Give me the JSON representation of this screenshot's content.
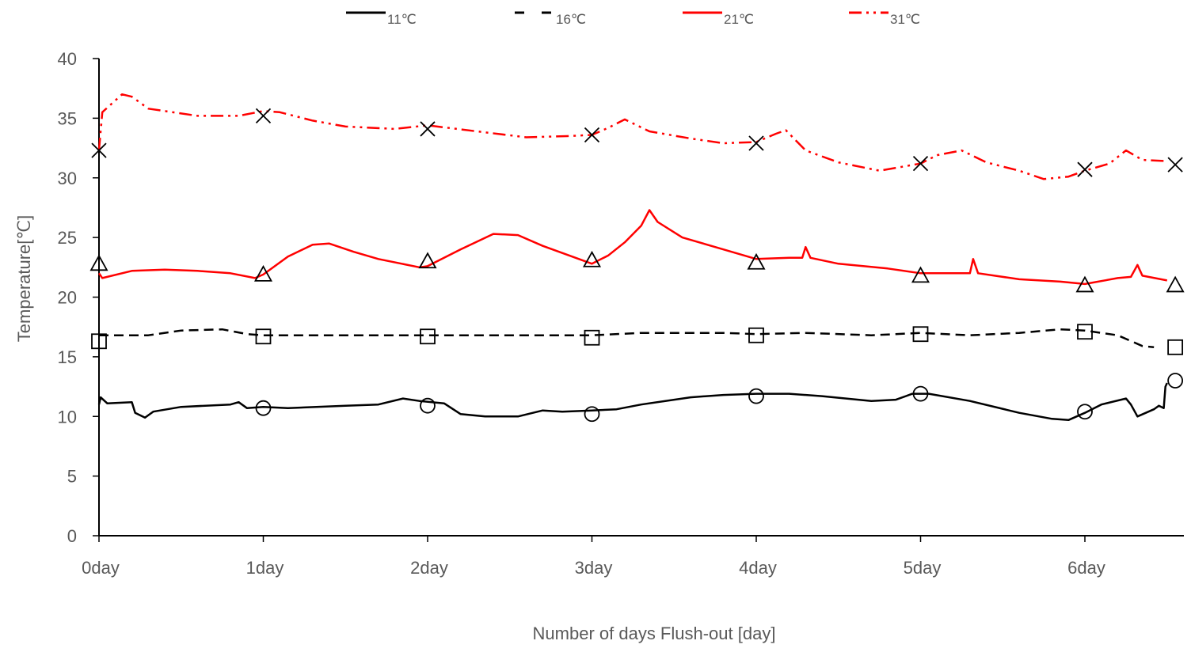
{
  "chart_data": {
    "type": "line",
    "title": "",
    "xlabel": "Number of days Flush-out [day]",
    "ylabel": "Temperature[℃]",
    "xlim": [
      0,
      6.55
    ],
    "ylim": [
      0,
      40
    ],
    "yticks": [
      0,
      5,
      10,
      15,
      20,
      25,
      30,
      35,
      40
    ],
    "xticks": [
      {
        "value": 0,
        "label": "0day"
      },
      {
        "value": 1,
        "label": "1day"
      },
      {
        "value": 2,
        "label": "2day"
      },
      {
        "value": 3,
        "label": "3day"
      },
      {
        "value": 4,
        "label": "4day"
      },
      {
        "value": 5,
        "label": "5day"
      },
      {
        "value": 6,
        "label": "6day"
      }
    ],
    "grid": false,
    "legend_position": "top",
    "series": [
      {
        "name": "11℃",
        "color": "#000000",
        "dash": "solid",
        "marker": "circle",
        "points": [
          [
            0,
            11.0
          ],
          [
            0.01,
            11.6
          ],
          [
            0.05,
            11.1
          ],
          [
            0.2,
            11.2
          ],
          [
            0.22,
            10.3
          ],
          [
            0.28,
            9.9
          ],
          [
            0.33,
            10.4
          ],
          [
            0.5,
            10.8
          ],
          [
            0.8,
            11.0
          ],
          [
            0.85,
            11.2
          ],
          [
            0.9,
            10.7
          ],
          [
            1.0,
            10.8
          ],
          [
            1.15,
            10.7
          ],
          [
            1.5,
            10.9
          ],
          [
            1.7,
            11.0
          ],
          [
            1.85,
            11.5
          ],
          [
            1.95,
            11.3
          ],
          [
            2.1,
            11.1
          ],
          [
            2.2,
            10.2
          ],
          [
            2.35,
            10.0
          ],
          [
            2.55,
            10.0
          ],
          [
            2.7,
            10.5
          ],
          [
            2.82,
            10.4
          ],
          [
            3.0,
            10.5
          ],
          [
            3.15,
            10.6
          ],
          [
            3.3,
            11.0
          ],
          [
            3.6,
            11.6
          ],
          [
            3.8,
            11.8
          ],
          [
            4.0,
            11.9
          ],
          [
            4.2,
            11.9
          ],
          [
            4.4,
            11.7
          ],
          [
            4.7,
            11.3
          ],
          [
            4.85,
            11.4
          ],
          [
            4.95,
            11.9
          ],
          [
            5.05,
            11.9
          ],
          [
            5.3,
            11.3
          ],
          [
            5.6,
            10.3
          ],
          [
            5.8,
            9.8
          ],
          [
            5.9,
            9.7
          ],
          [
            6.0,
            10.3
          ],
          [
            6.1,
            11.0
          ],
          [
            6.25,
            11.5
          ],
          [
            6.28,
            11.0
          ],
          [
            6.32,
            10.0
          ],
          [
            6.42,
            10.6
          ],
          [
            6.45,
            10.9
          ],
          [
            6.48,
            10.7
          ],
          [
            6.49,
            12.5
          ],
          [
            6.5,
            12.8
          ]
        ],
        "markers": [
          [
            0,
            null
          ],
          [
            1,
            10.7
          ],
          [
            2,
            10.9
          ],
          [
            3,
            10.2
          ],
          [
            4,
            11.7
          ],
          [
            5,
            11.9
          ],
          [
            6,
            10.4
          ],
          [
            6.55,
            13.0
          ]
        ]
      },
      {
        "name": "16℃",
        "color": "#000000",
        "dash": "dashed",
        "marker": "square",
        "points": [
          [
            0,
            16.8
          ],
          [
            0.3,
            16.8
          ],
          [
            0.5,
            17.2
          ],
          [
            0.75,
            17.3
          ],
          [
            0.9,
            16.9
          ],
          [
            1.0,
            16.8
          ],
          [
            1.5,
            16.8
          ],
          [
            2.0,
            16.8
          ],
          [
            2.5,
            16.8
          ],
          [
            3.0,
            16.8
          ],
          [
            3.3,
            17.0
          ],
          [
            3.8,
            17.0
          ],
          [
            4.0,
            16.9
          ],
          [
            4.3,
            17.0
          ],
          [
            4.7,
            16.8
          ],
          [
            5.0,
            17.0
          ],
          [
            5.3,
            16.8
          ],
          [
            5.6,
            17.0
          ],
          [
            5.85,
            17.3
          ],
          [
            6.0,
            17.2
          ],
          [
            6.2,
            16.8
          ],
          [
            6.35,
            15.9
          ],
          [
            6.42,
            15.8
          ]
        ],
        "markers": [
          [
            0,
            16.3
          ],
          [
            1,
            16.7
          ],
          [
            2,
            16.7
          ],
          [
            3,
            16.6
          ],
          [
            4,
            16.8
          ],
          [
            5,
            16.9
          ],
          [
            6,
            17.1
          ],
          [
            6.55,
            15.8
          ]
        ]
      },
      {
        "name": "21℃",
        "color": "#ff0000",
        "dash": "solid",
        "marker": "triangle",
        "points": [
          [
            0,
            22.0
          ],
          [
            0.02,
            21.6
          ],
          [
            0.2,
            22.2
          ],
          [
            0.4,
            22.3
          ],
          [
            0.6,
            22.2
          ],
          [
            0.8,
            22.0
          ],
          [
            0.95,
            21.6
          ],
          [
            1.0,
            21.9
          ],
          [
            1.15,
            23.4
          ],
          [
            1.3,
            24.4
          ],
          [
            1.4,
            24.5
          ],
          [
            1.55,
            23.8
          ],
          [
            1.7,
            23.2
          ],
          [
            1.95,
            22.5
          ],
          [
            2.0,
            22.6
          ],
          [
            2.2,
            24.0
          ],
          [
            2.4,
            25.3
          ],
          [
            2.55,
            25.2
          ],
          [
            2.7,
            24.3
          ],
          [
            3.0,
            22.8
          ],
          [
            3.1,
            23.5
          ],
          [
            3.2,
            24.6
          ],
          [
            3.3,
            26.0
          ],
          [
            3.35,
            27.3
          ],
          [
            3.4,
            26.3
          ],
          [
            3.55,
            25.0
          ],
          [
            3.8,
            24.0
          ],
          [
            4.0,
            23.2
          ],
          [
            4.2,
            23.3
          ],
          [
            4.28,
            23.3
          ],
          [
            4.3,
            24.2
          ],
          [
            4.33,
            23.3
          ],
          [
            4.5,
            22.8
          ],
          [
            4.8,
            22.4
          ],
          [
            5.0,
            22.0
          ],
          [
            5.15,
            22.0
          ],
          [
            5.3,
            22.0
          ],
          [
            5.32,
            23.2
          ],
          [
            5.35,
            22.0
          ],
          [
            5.6,
            21.5
          ],
          [
            5.85,
            21.3
          ],
          [
            6.0,
            21.1
          ],
          [
            6.2,
            21.6
          ],
          [
            6.28,
            21.7
          ],
          [
            6.32,
            22.7
          ],
          [
            6.35,
            21.8
          ],
          [
            6.5,
            21.4
          ]
        ],
        "markers": [
          [
            0,
            22.8
          ],
          [
            1,
            21.9
          ],
          [
            2,
            23.0
          ],
          [
            3,
            23.1
          ],
          [
            4,
            22.9
          ],
          [
            5,
            21.8
          ],
          [
            6,
            21.0
          ],
          [
            6.55,
            21.0
          ]
        ]
      },
      {
        "name": "31℃",
        "color": "#ff0000",
        "dash": "dashdot",
        "marker": "cross",
        "points": [
          [
            0,
            32.3
          ],
          [
            0.02,
            35.5
          ],
          [
            0.1,
            36.5
          ],
          [
            0.14,
            37.0
          ],
          [
            0.2,
            36.8
          ],
          [
            0.3,
            35.8
          ],
          [
            0.6,
            35.2
          ],
          [
            0.85,
            35.2
          ],
          [
            1.0,
            35.6
          ],
          [
            1.1,
            35.5
          ],
          [
            1.3,
            34.8
          ],
          [
            1.5,
            34.3
          ],
          [
            1.8,
            34.1
          ],
          [
            2.0,
            34.4
          ],
          [
            2.3,
            33.9
          ],
          [
            2.6,
            33.4
          ],
          [
            2.85,
            33.5
          ],
          [
            3.0,
            33.6
          ],
          [
            3.1,
            34.2
          ],
          [
            3.2,
            34.9
          ],
          [
            3.35,
            33.9
          ],
          [
            3.6,
            33.3
          ],
          [
            3.8,
            32.9
          ],
          [
            4.0,
            33.0
          ],
          [
            4.12,
            33.7
          ],
          [
            4.18,
            34.0
          ],
          [
            4.3,
            32.3
          ],
          [
            4.5,
            31.3
          ],
          [
            4.75,
            30.6
          ],
          [
            5.0,
            31.2
          ],
          [
            5.1,
            31.9
          ],
          [
            5.25,
            32.3
          ],
          [
            5.4,
            31.3
          ],
          [
            5.6,
            30.6
          ],
          [
            5.75,
            29.9
          ],
          [
            5.9,
            30.1
          ],
          [
            6.0,
            30.6
          ],
          [
            6.15,
            31.2
          ],
          [
            6.25,
            32.3
          ],
          [
            6.35,
            31.5
          ],
          [
            6.5,
            31.4
          ]
        ],
        "markers": [
          [
            0,
            32.3
          ],
          [
            1,
            35.2
          ],
          [
            2,
            34.1
          ],
          [
            3,
            33.6
          ],
          [
            4,
            32.9
          ],
          [
            5,
            31.2
          ],
          [
            6,
            30.7
          ],
          [
            6.55,
            31.1
          ]
        ]
      }
    ]
  }
}
